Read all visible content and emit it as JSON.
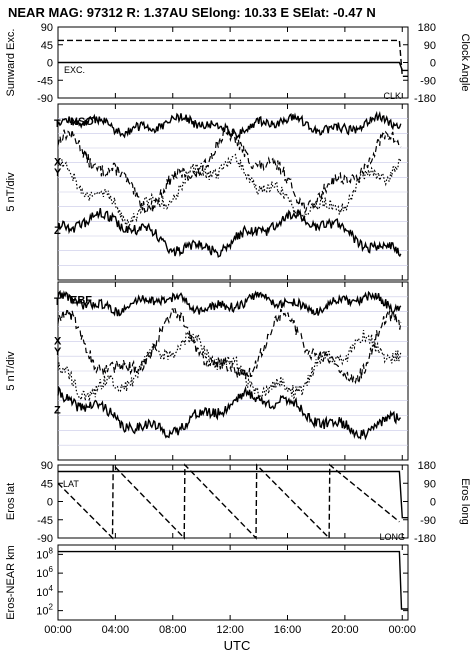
{
  "header": {
    "title": "NEAR MAG: 97312  R: 1.37AU  SElong:   10.33 E  SElat:   -0.47 N"
  },
  "colors": {
    "ink": "#000000",
    "grid": "#c8c8e6",
    "background": "#ffffff"
  },
  "chart_data": [
    {
      "id": "sunward",
      "type": "line",
      "ylabel_left": "Sunward Exc.",
      "ylabel_right": "Clock Angle",
      "yticks_left": [
        "90",
        "45",
        "0",
        "-45",
        "-90"
      ],
      "yticks_right": [
        "180",
        "90",
        "0",
        "-90",
        "-180"
      ],
      "ylim_left": [
        -90,
        90
      ],
      "ylim_right": [
        -180,
        180
      ],
      "annotations": [
        "EXC.",
        "CLK"
      ],
      "series": [
        {
          "name": "EXC.",
          "style": "solid",
          "x": [
            0,
            23.8,
            24.0,
            24.4
          ],
          "y": [
            0,
            0,
            -20,
            -20
          ]
        },
        {
          "name": "CLK",
          "style": "dashed",
          "x": [
            0,
            23.8,
            24.0,
            24.4
          ],
          "y": [
            112,
            112,
            -70,
            -70
          ]
        }
      ]
    },
    {
      "id": "nso",
      "type": "line",
      "ylabel": "5 nT/div",
      "label": "NSO",
      "components": [
        "T",
        "X",
        "Y",
        "Z"
      ]
    },
    {
      "id": "ebf",
      "type": "line",
      "ylabel": "5 nT/div",
      "label": "EBF",
      "components": [
        "T",
        "X",
        "Y",
        "Z"
      ]
    },
    {
      "id": "eros",
      "type": "line",
      "ylabel_left": "Eros lat",
      "ylabel_right": "Eros long",
      "yticks_left": [
        "90",
        "45",
        "0",
        "-45",
        "-90"
      ],
      "yticks_right": [
        "180",
        "90",
        "0",
        "-90",
        "-180"
      ],
      "ylim_left": [
        -90,
        90
      ],
      "ylim_right": [
        -180,
        180
      ],
      "annotations": [
        "LAT",
        "LONG"
      ],
      "series": [
        {
          "name": "LAT",
          "style": "solid",
          "x": [
            0,
            23.8,
            24.0,
            24.4
          ],
          "y": [
            74,
            74,
            -40,
            -40
          ]
        },
        {
          "name": "LONG",
          "style": "dashed",
          "x": [
            0,
            3.8,
            3.85,
            8.8,
            8.85,
            13.8,
            13.85,
            18.9,
            18.95,
            23.8
          ],
          "y": [
            90,
            -180,
            180,
            -180,
            180,
            -180,
            180,
            -180,
            180,
            -100
          ]
        }
      ]
    },
    {
      "id": "distance",
      "type": "line",
      "ylabel": "Eros-NEAR km",
      "yscale": "log",
      "ylim": [
        10,
        1000000000
      ],
      "yticks": [
        "10^8",
        "10^6",
        "10^4",
        "10^2"
      ],
      "series": [
        {
          "name": "",
          "style": "solid",
          "x": [
            0,
            23.8,
            23.95,
            24.4
          ],
          "y": [
            200000000,
            200000000,
            150,
            150
          ]
        }
      ]
    }
  ],
  "xaxis": {
    "label": "UTC",
    "ticks": [
      "00:00",
      "04:00",
      "08:00",
      "12:00",
      "16:00",
      "20:00",
      "00:00"
    ],
    "range_hours": [
      0,
      24.4
    ]
  }
}
